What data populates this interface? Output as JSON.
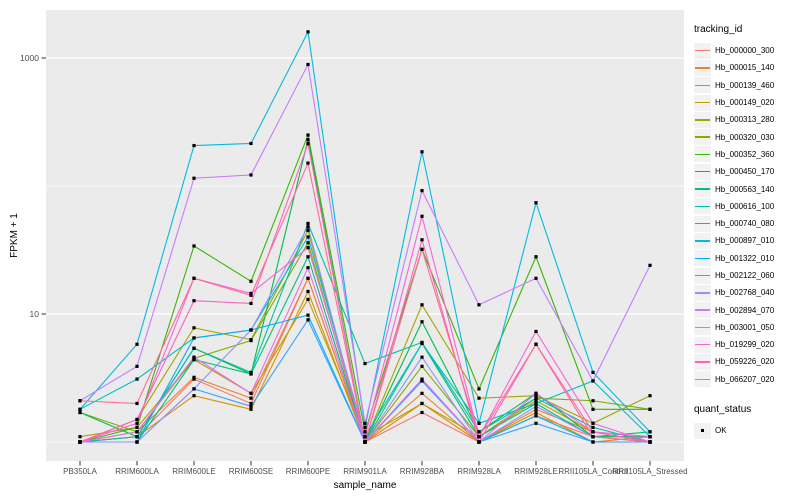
{
  "figure": {
    "background": "#FFFFFF",
    "panel_background": "#EBEBEB",
    "grid_color": "#FFFFFF",
    "tick_text_color": "#4D4D4D",
    "point_color": "#000000"
  },
  "chart_data": {
    "type": "line",
    "title": "",
    "xlabel": "sample_name",
    "ylabel": "FPKM + 1",
    "y_scale": "log10",
    "y_major_ticks": [
      {
        "label": "10",
        "value": 10
      },
      {
        "label": "1000",
        "value": 1000
      }
    ],
    "y_minor_gridlines": [
      1,
      100
    ],
    "ylim": [
      0.72,
      2300
    ],
    "grid": true,
    "legend_position": "right",
    "categories": [
      "PB350LA",
      "RRIM600LA",
      "RRIM600LE",
      "RRIM600SE",
      "RRIM600PE",
      "RRIM901LA",
      "RRIM928BA",
      "RRIM928LA",
      "RRIM928LE",
      "RRII105LA_Control",
      "RRII105LA_Stressed"
    ],
    "series": [
      {
        "name": "Hb_000000_300",
        "color": "#F8766D",
        "values": [
          1.0,
          1.1,
          3.1,
          2.0,
          19,
          1.0,
          1.7,
          1.0,
          1.6,
          1.1,
          1.0
        ]
      },
      {
        "name": "Hb_000015_140",
        "color": "#EA8331",
        "values": [
          1.0,
          1.2,
          3.2,
          2.2,
          19,
          1.0,
          2.4,
          1.0,
          1.8,
          1.2,
          1.0
        ]
      },
      {
        "name": "Hb_000139_460",
        "color": "#D89000",
        "values": [
          1.0,
          1.1,
          2.3,
          1.8,
          15,
          1.0,
          2.0,
          1.0,
          1.7,
          1.0,
          1.1
        ]
      },
      {
        "name": "Hb_000149_020",
        "color": "#C09B00",
        "values": [
          1.1,
          1.3,
          4.4,
          2.4,
          13,
          1.1,
          2.0,
          1.1,
          2.1,
          1.2,
          1.1
        ]
      },
      {
        "name": "Hb_000313_280",
        "color": "#A3A500",
        "values": [
          1.0,
          1.5,
          7.8,
          6.3,
          45,
          1.0,
          11.8,
          2.2,
          2.3,
          1.4,
          2.3
        ]
      },
      {
        "name": "Hb_000320_030",
        "color": "#7CAE00",
        "values": [
          1.7,
          1.2,
          4.5,
          6.2,
          36,
          1.0,
          3.9,
          1.1,
          2.2,
          2.1,
          1.8
        ]
      },
      {
        "name": "Hb_000352_360",
        "color": "#39B600",
        "values": [
          1.0,
          1.3,
          34,
          18,
          250,
          1.2,
          32,
          2.6,
          28,
          1.8,
          1.8
        ]
      },
      {
        "name": "Hb_000450_170",
        "color": "#00BB4E",
        "values": [
          1.7,
          1.1,
          5.4,
          3.4,
          230,
          1.0,
          8.7,
          1.2,
          2.4,
          1.1,
          1.1
        ]
      },
      {
        "name": "Hb_000563_140",
        "color": "#00BF7D",
        "values": [
          1.0,
          1.0,
          4.4,
          3.4,
          28,
          1.0,
          5.9,
          1.1,
          2.0,
          1.1,
          1.2
        ]
      },
      {
        "name": "Hb_000616_100",
        "color": "#00C1A3",
        "values": [
          1.0,
          1.1,
          5.4,
          3.5,
          51,
          4.1,
          6.0,
          1.2,
          2.2,
          1.3,
          1.0
        ]
      },
      {
        "name": "Hb_000740_080",
        "color": "#00BFC4",
        "values": [
          1.8,
          3.1,
          6.5,
          7.5,
          40,
          1.1,
          5.9,
          1.4,
          2.0,
          3.0,
          1.1
        ]
      },
      {
        "name": "Hb_000897_010",
        "color": "#00BAE0",
        "values": [
          1.8,
          5.8,
          207,
          215,
          1600,
          1.3,
          185,
          1.4,
          74,
          3.5,
          1.2
        ]
      },
      {
        "name": "Hb_001322_010",
        "color": "#00B0F6",
        "values": [
          1.0,
          1.0,
          6.5,
          7.5,
          9.8,
          1.0,
          3.0,
          1.0,
          1.6,
          1.0,
          1.0
        ]
      },
      {
        "name": "Hb_002122_060",
        "color": "#35A2FF",
        "values": [
          1.0,
          1.0,
          2.6,
          1.9,
          9.0,
          1.0,
          3.0,
          1.0,
          1.4,
          1.0,
          1.0
        ]
      },
      {
        "name": "Hb_002768_040",
        "color": "#9590FF",
        "values": [
          1.0,
          1.0,
          2.6,
          7.5,
          48,
          1.0,
          4.6,
          1.0,
          1.9,
          1.1,
          1.0
        ]
      },
      {
        "name": "Hb_002894_070",
        "color": "#C77CFF",
        "values": [
          2.1,
          3.9,
          115,
          122,
          890,
          1.4,
          92,
          11.8,
          19,
          3.0,
          24
        ]
      },
      {
        "name": "Hb_003001_050",
        "color": "#E76BF3",
        "values": [
          1.0,
          1.2,
          4.6,
          2.4,
          23,
          1.0,
          3.1,
          1.0,
          2.4,
          1.2,
          1.1
        ]
      },
      {
        "name": "Hb_019299_020",
        "color": "#FA62DB",
        "values": [
          1.0,
          1.4,
          19,
          14.5,
          33,
          1.1,
          58,
          1.1,
          7.3,
          1.4,
          1.0
        ]
      },
      {
        "name": "Hb_059226_020",
        "color": "#FF62BC",
        "values": [
          1.0,
          1.5,
          12.7,
          12.1,
          214,
          1.0,
          38,
          1.0,
          5.8,
          1.2,
          1.0
        ]
      },
      {
        "name": "Hb_066207_020",
        "color": "#FF6A98",
        "values": [
          2.1,
          2.0,
          19,
          14,
          151,
          1.0,
          32,
          1.1,
          5.8,
          1.1,
          1.0
        ]
      }
    ],
    "legend": {
      "title": "tracking_id"
    },
    "legend2": {
      "title": "quant_status",
      "items": [
        {
          "label": "OK",
          "marker": "square",
          "color": "#000000"
        }
      ]
    }
  }
}
